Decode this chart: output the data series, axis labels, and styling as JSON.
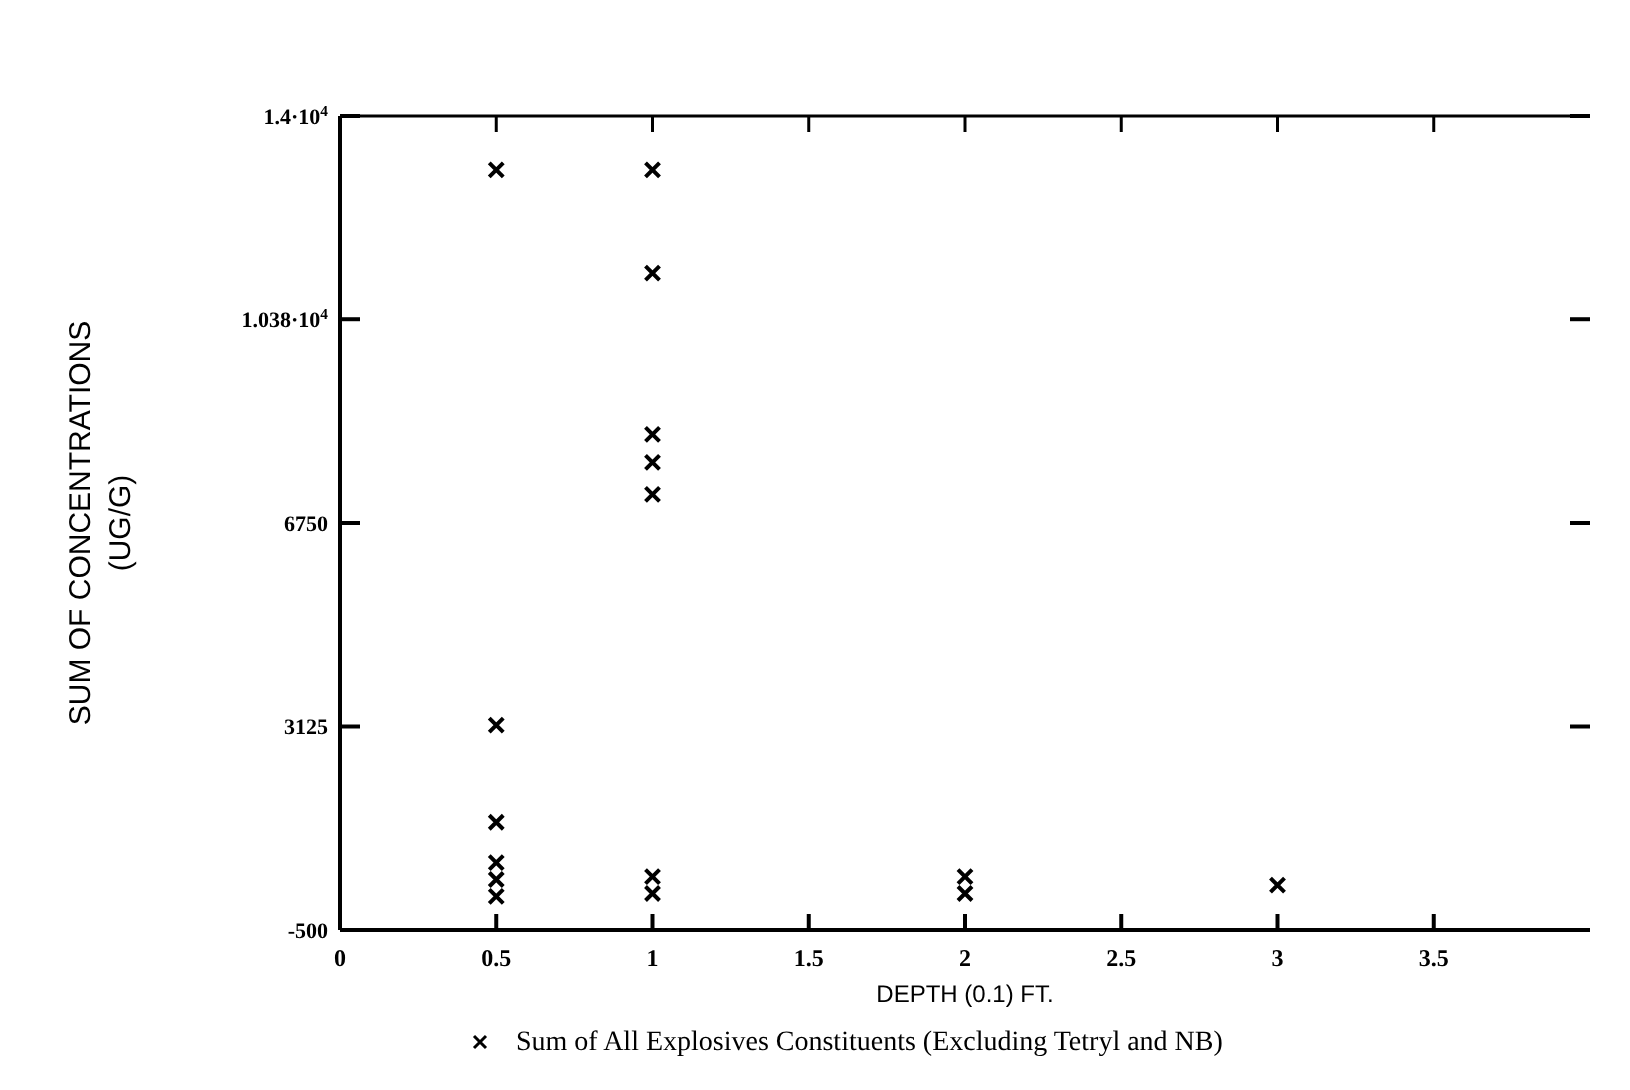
{
  "chart_data": {
    "type": "scatter",
    "xlabel": "DEPTH (0.1) FT.",
    "ylabel": "SUM OF CONCENTRATIONS (UG/G)",
    "marker": "cross",
    "legend": "bottom",
    "grid": false,
    "xlim": [
      0,
      4
    ],
    "xticks": [
      0,
      {
        "value": 0.5,
        "label": "0.5"
      },
      1,
      {
        "value": 1.5,
        "label": "1.5"
      },
      2,
      {
        "value": 2.5,
        "label": "2.5"
      },
      3,
      {
        "value": 3.5,
        "label": "3.5"
      }
    ],
    "ylim": [
      -500,
      14000
    ],
    "yticks": [
      -500,
      3125,
      6750,
      {
        "value": 10380,
        "label": "1.038·10$^{4}$"
      },
      {
        "value": 14000,
        "label": "1.4·10$^{4}$"
      }
    ],
    "series": [
      {
        "name": "Sum of All Explosives Constituents (Excluding Tetryl and NB)",
        "color": "#000000",
        "x": [
          0.5,
          0.5,
          0.5,
          0.5,
          0.5,
          0.5,
          1,
          1,
          1,
          1,
          1,
          1,
          1,
          2,
          2,
          3
        ],
        "values": [
          13040,
          3150,
          1420,
          700,
          400,
          100,
          13040,
          11200,
          8330,
          7830,
          7260,
          450,
          150,
          450,
          150,
          300
        ]
      }
    ]
  }
}
